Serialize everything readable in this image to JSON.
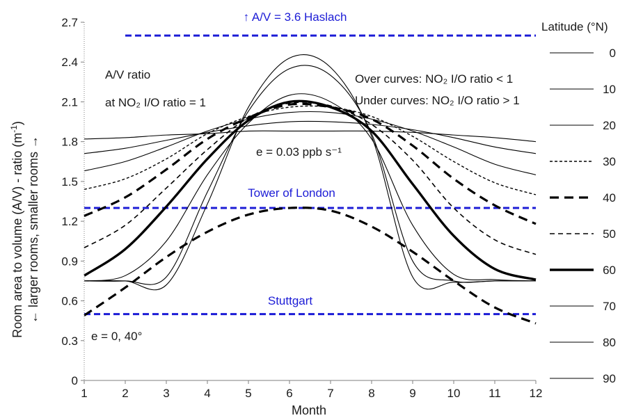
{
  "chart_data": {
    "type": "line",
    "xlabel": "Month",
    "ylabel_line1": "Room area to volume (A/V) - ratio (m",
    "ylabel_sup": "-1",
    "ylabel_line1_end": ")",
    "ylabel_line2": "← larger rooms, smaller rooms →",
    "xlim": [
      1,
      12
    ],
    "ylim": [
      0,
      2.7
    ],
    "x_ticks": [
      "1",
      "2",
      "3",
      "4",
      "5",
      "6",
      "7",
      "8",
      "9",
      "10",
      "11",
      "12"
    ],
    "y_ticks": [
      "0",
      "0.3",
      "0.6",
      "0.9",
      "1.2",
      "1.5",
      "1.8",
      "2.1",
      "2.4",
      "2.7"
    ],
    "grid": false,
    "legend_position": "right",
    "legend_title": "Latitude (°N)",
    "series": [
      {
        "name": "0",
        "style": "thin",
        "x": [
          1,
          2,
          3,
          4,
          5,
          6,
          7,
          8,
          9,
          10,
          11,
          12
        ],
        "values": [
          1.82,
          1.83,
          1.85,
          1.86,
          1.88,
          1.88,
          1.88,
          1.88,
          1.87,
          1.85,
          1.83,
          1.8
        ]
      },
      {
        "name": "10",
        "style": "thin",
        "x": [
          1,
          2,
          3,
          4,
          5,
          6,
          7,
          8,
          9,
          10,
          11,
          12
        ],
        "values": [
          1.71,
          1.75,
          1.81,
          1.87,
          1.92,
          1.95,
          1.95,
          1.93,
          1.89,
          1.83,
          1.76,
          1.71
        ]
      },
      {
        "name": "20",
        "style": "thin",
        "x": [
          1,
          2,
          3,
          4,
          5,
          6,
          7,
          8,
          9,
          10,
          11,
          12
        ],
        "values": [
          1.58,
          1.65,
          1.76,
          1.88,
          1.97,
          2.02,
          2.02,
          1.97,
          1.88,
          1.76,
          1.63,
          1.55
        ]
      },
      {
        "name": "30",
        "style": "thin-dash",
        "x": [
          1,
          2,
          3,
          4,
          5,
          6,
          7,
          8,
          9,
          10,
          11,
          12
        ],
        "values": [
          1.44,
          1.52,
          1.67,
          1.86,
          1.99,
          2.06,
          2.06,
          1.99,
          1.84,
          1.65,
          1.49,
          1.4
        ]
      },
      {
        "name": "40",
        "style": "thick-dash",
        "x": [
          1,
          2,
          3,
          4,
          5,
          6,
          7,
          8,
          9,
          10,
          11,
          12
        ],
        "values": [
          1.24,
          1.38,
          1.59,
          1.82,
          1.98,
          2.08,
          2.06,
          1.97,
          1.77,
          1.52,
          1.32,
          1.18
        ]
      },
      {
        "name": "50",
        "style": "dash",
        "x": [
          1,
          2,
          3,
          4,
          5,
          6,
          7,
          8,
          9,
          10,
          11,
          12
        ],
        "values": [
          1.0,
          1.17,
          1.45,
          1.74,
          1.98,
          2.09,
          2.07,
          1.93,
          1.66,
          1.3,
          1.06,
          0.95
        ]
      },
      {
        "name": "60",
        "style": "thick",
        "x": [
          1,
          2,
          3,
          4,
          5,
          6,
          7,
          8,
          9,
          10,
          11,
          12
        ],
        "values": [
          0.79,
          0.99,
          1.31,
          1.67,
          1.96,
          2.1,
          2.06,
          1.88,
          1.48,
          1.09,
          0.84,
          0.76
        ]
      },
      {
        "name": "70",
        "style": "thin",
        "x": [
          1,
          2,
          3,
          4,
          5,
          6,
          7,
          8,
          9,
          10,
          11,
          12
        ],
        "values": [
          0.75,
          0.79,
          1.05,
          1.55,
          1.94,
          2.15,
          2.1,
          1.82,
          1.17,
          0.8,
          0.76,
          0.75
        ]
      },
      {
        "name": "80",
        "style": "thin",
        "x": [
          1,
          2,
          3,
          4,
          5,
          6,
          7,
          8,
          9,
          10,
          11,
          12
        ],
        "values": [
          0.75,
          0.75,
          0.78,
          1.42,
          2.03,
          2.35,
          2.3,
          1.86,
          0.9,
          0.75,
          0.75,
          0.75
        ]
      },
      {
        "name": "90",
        "style": "thin",
        "x": [
          1,
          2,
          3,
          4,
          5,
          6,
          7,
          8,
          9,
          10,
          11,
          12
        ],
        "values": [
          0.75,
          0.75,
          0.72,
          1.33,
          2.06,
          2.43,
          2.36,
          1.84,
          0.78,
          0.74,
          0.75,
          0.75
        ]
      },
      {
        "name": "e = 0, 40°",
        "style": "thick-dash",
        "x": [
          1,
          2,
          3,
          4,
          5,
          6,
          7,
          8,
          9,
          10,
          11,
          12
        ],
        "values": [
          0.49,
          0.7,
          0.93,
          1.12,
          1.25,
          1.3,
          1.28,
          1.16,
          0.97,
          0.75,
          0.55,
          0.43
        ]
      }
    ],
    "reference_lines": [
      {
        "label": "↑ A/V = 3.6 Haslach",
        "y": 2.6,
        "x_start": 2,
        "x_end": 12,
        "color": "#1c1cd6"
      },
      {
        "label": "Tower of London",
        "y": 1.3,
        "x_start": 1,
        "x_end": 12,
        "color": "#1c1cd6"
      },
      {
        "label": "Stuttgart",
        "y": 0.5,
        "x_start": 1,
        "x_end": 12,
        "color": "#1c1cd6"
      }
    ],
    "annotations": {
      "av_ratio_line1": "A/V ratio",
      "av_ratio_line2": "at NO₂ I/O ratio = 1",
      "over_curves": "Over curves: NO₂ I/O ratio < 1",
      "under_curves": "Under curves: NO₂ I/O ratio > 1",
      "emission": "e = 0.03 ppb s⁻¹",
      "e_zero": "e = 0, 40°"
    },
    "colors": {
      "curves": "#000000",
      "reference": "#1c1cd6",
      "axis": "#7f7f7f"
    }
  }
}
